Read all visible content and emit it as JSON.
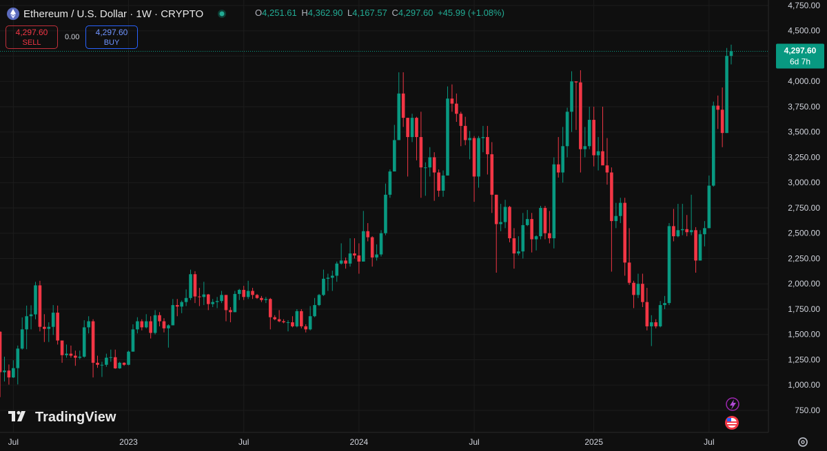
{
  "symbol": {
    "title": "Ethereum / U.S. Dollar · 1W · CRYPTO",
    "ohlc": [
      {
        "key": "O",
        "label": "4,251.61"
      },
      {
        "key": "H",
        "label": "4,362.90"
      },
      {
        "key": "L",
        "label": "4,167.57"
      },
      {
        "key": "C",
        "label": "4,297.60"
      }
    ],
    "change": "+45.99 (+1.08%)"
  },
  "trade": {
    "sell_price": "4,297.60",
    "sell": "SELL",
    "spread": "0.00",
    "buy_price": "4,297.60",
    "buy": "BUY"
  },
  "price_tag": {
    "price": "4,297.60",
    "countdown": "6d 7h"
  },
  "brand": "TradingView",
  "chart_data": {
    "type": "candlestick",
    "up_color": "#089981",
    "down_color": "#f23645",
    "grid": true,
    "ylim": [
      532,
      4804
    ],
    "yticks": [
      {
        "value": 750,
        "label": "750.00"
      },
      {
        "value": 1000,
        "label": "1,000.00"
      },
      {
        "value": 1250,
        "label": "1,250.00"
      },
      {
        "value": 1500,
        "label": "1,500.00"
      },
      {
        "value": 1750,
        "label": "1,750.00"
      },
      {
        "value": 2000,
        "label": "2,000.00"
      },
      {
        "value": 2250,
        "label": "2,250.00"
      },
      {
        "value": 2500,
        "label": "2,500.00"
      },
      {
        "value": 2750,
        "label": "2,750.00"
      },
      {
        "value": 3000,
        "label": "3,000.00"
      },
      {
        "value": 3250,
        "label": "3,250.00"
      },
      {
        "value": 3500,
        "label": "3,500.00"
      },
      {
        "value": 3750,
        "label": "3,750.00"
      },
      {
        "value": 4000,
        "label": "4,000.00"
      },
      {
        "value": 4250,
        "label": "4,250.00"
      },
      {
        "value": 4500,
        "label": "4,500.00"
      },
      {
        "value": 4750,
        "label": "4,750.00"
      }
    ],
    "categories": [
      null,
      null,
      null,
      "Jul",
      null,
      null,
      null,
      null,
      null,
      null,
      null,
      null,
      null,
      null,
      null,
      null,
      null,
      null,
      null,
      null,
      null,
      null,
      null,
      null,
      null,
      null,
      null,
      null,
      null,
      "2023",
      null,
      null,
      null,
      null,
      null,
      null,
      null,
      null,
      null,
      null,
      null,
      null,
      null,
      null,
      null,
      null,
      null,
      null,
      null,
      null,
      null,
      null,
      null,
      null,
      null,
      "Jul",
      null,
      null,
      null,
      null,
      null,
      null,
      null,
      null,
      null,
      null,
      null,
      null,
      null,
      null,
      null,
      null,
      null,
      null,
      null,
      null,
      null,
      null,
      null,
      null,
      null,
      "2024",
      null,
      null,
      null,
      null,
      null,
      null,
      null,
      null,
      null,
      null,
      null,
      null,
      null,
      null,
      null,
      null,
      null,
      null,
      null,
      null,
      null,
      null,
      null,
      null,
      null,
      "Jul",
      null,
      null,
      null,
      null,
      null,
      null,
      null,
      null,
      null,
      null,
      null,
      null,
      null,
      null,
      null,
      null,
      null,
      null,
      null,
      null,
      null,
      null,
      null,
      null,
      null,
      null,
      "2025",
      null,
      null,
      null,
      null,
      null,
      null,
      null,
      null,
      null,
      null,
      null,
      null,
      null,
      null,
      null,
      null,
      null,
      null,
      null,
      null,
      null,
      null,
      null,
      null,
      null,
      "Jul",
      null,
      null,
      null,
      null,
      null
    ],
    "open": [
      1527,
      1127,
      1143,
      1075,
      1167,
      1360,
      1550,
      1680,
      1698,
      1985,
      1575,
      1555,
      1575,
      1715,
      1440,
      1295,
      1310,
      1290,
      1270,
      1280,
      1570,
      1630,
      1220,
      1200,
      1200,
      1270,
      1275,
      1165,
      1220,
      1200,
      1330,
      1550,
      1630,
      1570,
      1630,
      1515,
      1690,
      1630,
      1560,
      1590,
      1790,
      1775,
      1820,
      1860,
      2095,
      1875,
      1870,
      1895,
      1800,
      1820,
      1830,
      1890,
      1740,
      1720,
      1900,
      1940,
      1870,
      1930,
      1890,
      1860,
      1840,
      1850,
      1670,
      1650,
      1630,
      1620,
      1620,
      1580,
      1730,
      1580,
      1550,
      1680,
      1790,
      1890,
      2050,
      2060,
      2080,
      2200,
      2230,
      2200,
      2300,
      2280,
      2220,
      2520,
      2460,
      2260,
      2290,
      2500,
      2880,
      3110,
      3420,
      3880,
      3640,
      3450,
      3640,
      3450,
      3150,
      3150,
      3250,
      3100,
      2920,
      3070,
      3830,
      3780,
      3680,
      3560,
      3420,
      3440,
      3060,
      3440,
      3450,
      3280,
      2880,
      2590,
      2610,
      2760,
      2450,
      2300,
      2320,
      2580,
      2640,
      2440,
      2470,
      2750,
      2500,
      2450,
      3180,
      3100,
      3360,
      3700,
      4000,
      3990,
      3330,
      3360,
      3620,
      3270,
      3310,
      3170,
      3100,
      2620,
      2670,
      2800,
      2210,
      2010,
      1890,
      2000,
      1820,
      1580,
      1620,
      1580,
      1790,
      1810,
      2570,
      2470,
      2530,
      2540,
      2510,
      2530,
      2230,
      2490,
      2550,
      2970,
      3760,
      3720,
      3490,
      4251.61
    ],
    "high": [
      1530,
      1280,
      1203,
      1245,
      1390,
      1668,
      1785,
      1788,
      2020,
      2030,
      1700,
      1620,
      1790,
      1785,
      1440,
      1400,
      1390,
      1340,
      1340,
      1640,
      1680,
      1650,
      1290,
      1230,
      1310,
      1350,
      1350,
      1230,
      1225,
      1340,
      1600,
      1670,
      1650,
      1700,
      1680,
      1740,
      1720,
      1660,
      1600,
      1850,
      1850,
      1835,
      1945,
      2140,
      2125,
      1960,
      2020,
      1900,
      1850,
      1870,
      1930,
      1890,
      1770,
      1930,
      1950,
      1980,
      2030,
      1960,
      1900,
      1880,
      1870,
      1860,
      1690,
      1740,
      1650,
      1640,
      1680,
      1750,
      1750,
      1600,
      1780,
      1860,
      1900,
      2140,
      2100,
      2130,
      2220,
      2400,
      2260,
      2450,
      2450,
      2400,
      2720,
      2600,
      2470,
      2390,
      2530,
      2990,
      3130,
      3570,
      4090,
      4090,
      3640,
      3680,
      3650,
      3700,
      3200,
      3350,
      3300,
      3130,
      3120,
      3950,
      3970,
      3880,
      3700,
      3650,
      3510,
      3460,
      3460,
      3560,
      3560,
      3400,
      2880,
      2790,
      2830,
      2770,
      2550,
      2470,
      2700,
      2730,
      2700,
      2480,
      2770,
      2770,
      2720,
      3250,
      3450,
      3550,
      3740,
      4100,
      4000,
      4110,
      3550,
      3750,
      3750,
      3450,
      3750,
      3440,
      3150,
      2800,
      2850,
      2850,
      2550,
      2030,
      2100,
      2100,
      1960,
      1690,
      1650,
      1830,
      1880,
      2600,
      2740,
      2790,
      2790,
      2680,
      2880,
      2560,
      2530,
      2620,
      3070,
      3800,
      3860,
      3940,
      4330,
      4362.9
    ],
    "low": [
      881,
      1035,
      1004,
      1070,
      1006,
      1350,
      1354,
      1550,
      1650,
      1530,
      1425,
      1425,
      1495,
      1400,
      1220,
      1270,
      1270,
      1190,
      1255,
      1270,
      1510,
      1075,
      1170,
      1080,
      1180,
      1230,
      1160,
      1160,
      1190,
      1195,
      1330,
      1510,
      1540,
      1560,
      1460,
      1500,
      1580,
      1520,
      1370,
      1590,
      1680,
      1710,
      1780,
      1840,
      1810,
      1780,
      1790,
      1740,
      1770,
      1760,
      1810,
      1630,
      1620,
      1720,
      1840,
      1840,
      1850,
      1850,
      1850,
      1820,
      1810,
      1550,
      1640,
      1620,
      1610,
      1530,
      1570,
      1570,
      1560,
      1520,
      1540,
      1670,
      1780,
      1880,
      1930,
      1930,
      2020,
      2190,
      2150,
      2170,
      2250,
      2100,
      2220,
      2420,
      2170,
      2230,
      2270,
      2480,
      2850,
      3110,
      3420,
      3550,
      3060,
      3400,
      3220,
      2850,
      2870,
      3060,
      2820,
      2860,
      2860,
      3070,
      3700,
      3600,
      3360,
      3370,
      3230,
      2810,
      2950,
      3300,
      3080,
      2700,
      2110,
      2520,
      2550,
      2410,
      2150,
      2280,
      2250,
      2570,
      2310,
      2330,
      2440,
      2440,
      2400,
      2350,
      3050,
      3000,
      3250,
      3500,
      3520,
      3100,
      3250,
      3330,
      3160,
      3120,
      3200,
      2980,
      2120,
      2550,
      2600,
      2080,
      1990,
      1760,
      1860,
      1770,
      1540,
      1385,
      1560,
      1570,
      1750,
      1790,
      2420,
      2460,
      2480,
      2470,
      2480,
      2110,
      2230,
      2370,
      2550,
      2960,
      3530,
      3350,
      3490,
      4167.57
    ],
    "close": [
      1127,
      1143,
      1075,
      1167,
      1360,
      1550,
      1680,
      1698,
      1985,
      1575,
      1555,
      1575,
      1715,
      1440,
      1295,
      1310,
      1290,
      1270,
      1280,
      1570,
      1630,
      1220,
      1200,
      1200,
      1270,
      1275,
      1165,
      1220,
      1200,
      1330,
      1550,
      1630,
      1570,
      1630,
      1515,
      1690,
      1630,
      1560,
      1590,
      1790,
      1775,
      1820,
      1860,
      2095,
      1875,
      1870,
      1895,
      1800,
      1820,
      1830,
      1890,
      1740,
      1720,
      1900,
      1940,
      1870,
      1930,
      1890,
      1860,
      1840,
      1850,
      1670,
      1650,
      1630,
      1620,
      1620,
      1580,
      1730,
      1580,
      1550,
      1680,
      1790,
      1890,
      2050,
      2060,
      2080,
      2200,
      2230,
      2200,
      2300,
      2280,
      2220,
      2520,
      2460,
      2260,
      2290,
      2500,
      2880,
      3110,
      3420,
      3880,
      3640,
      3450,
      3640,
      3450,
      3150,
      3150,
      3250,
      3100,
      2920,
      3070,
      3830,
      3780,
      3680,
      3560,
      3420,
      3440,
      3060,
      3440,
      3450,
      3280,
      2880,
      2590,
      2610,
      2760,
      2450,
      2300,
      2320,
      2580,
      2640,
      2440,
      2470,
      2750,
      2500,
      2450,
      3180,
      3100,
      3360,
      3700,
      4000,
      3990,
      3330,
      3360,
      3620,
      3270,
      3310,
      3170,
      3100,
      2620,
      2670,
      2800,
      2210,
      2010,
      1890,
      2000,
      1820,
      1580,
      1620,
      1580,
      1790,
      1810,
      2570,
      2470,
      2530,
      2540,
      2510,
      2530,
      2230,
      2490,
      2550,
      2970,
      3760,
      3720,
      3490,
      4251.61,
      4297.6
    ]
  }
}
